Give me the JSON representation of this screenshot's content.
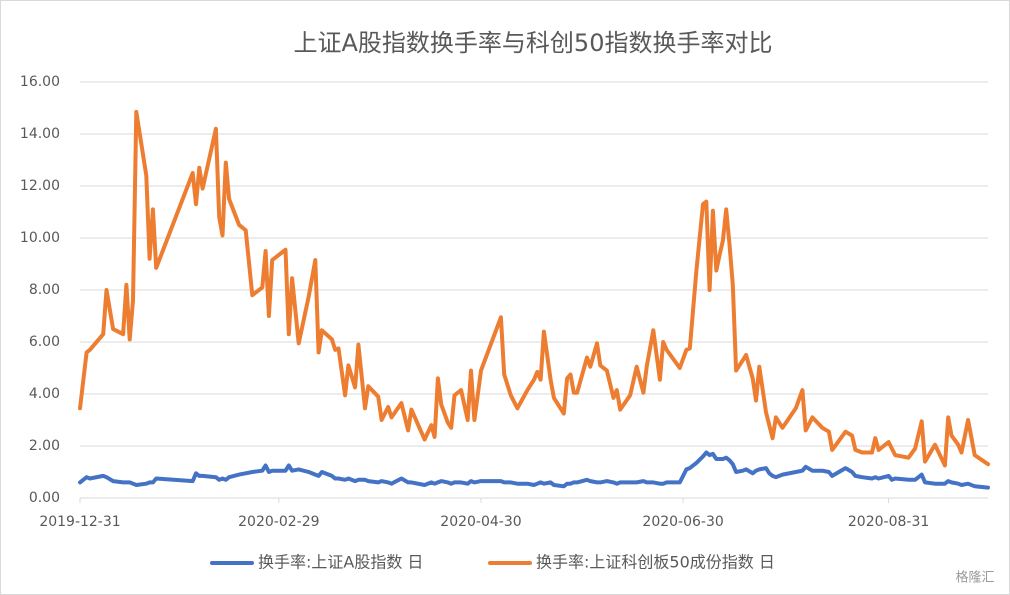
{
  "chart_data": {
    "type": "line",
    "title": "上证A股指数换手率与科创50指数换手率对比",
    "x": [
      "2019-12-31",
      "2020-01-02",
      "2020-01-03",
      "2020-01-07",
      "2020-01-08",
      "2020-01-10",
      "2020-01-13",
      "2020-01-14",
      "2020-01-15",
      "2020-01-16",
      "2020-01-17",
      "2020-01-20",
      "2020-01-21",
      "2020-01-22",
      "2020-01-23",
      "2020-02-03",
      "2020-02-04",
      "2020-02-05",
      "2020-02-06",
      "2020-02-10",
      "2020-02-11",
      "2020-02-12",
      "2020-02-13",
      "2020-02-14",
      "2020-02-17",
      "2020-02-19",
      "2020-02-21",
      "2020-02-24",
      "2020-02-25",
      "2020-02-26",
      "2020-02-27",
      "2020-03-02",
      "2020-03-03",
      "2020-03-04",
      "2020-03-06",
      "2020-03-09",
      "2020-03-11",
      "2020-03-12",
      "2020-03-13",
      "2020-03-16",
      "2020-03-17",
      "2020-03-18",
      "2020-03-20",
      "2020-03-21",
      "2020-03-23",
      "2020-03-24",
      "2020-03-26",
      "2020-03-27",
      "2020-03-30",
      "2020-03-31",
      "2020-04-02",
      "2020-04-03",
      "2020-04-06",
      "2020-04-08",
      "2020-04-09",
      "2020-04-13",
      "2020-04-15",
      "2020-04-16",
      "2020-04-17",
      "2020-04-18",
      "2020-04-20",
      "2020-04-21",
      "2020-04-22",
      "2020-04-24",
      "2020-04-26",
      "2020-04-27",
      "2020-04-28",
      "2020-04-30",
      "2020-05-06",
      "2020-05-07",
      "2020-05-09",
      "2020-05-11",
      "2020-05-14",
      "2020-05-16",
      "2020-05-17",
      "2020-05-18",
      "2020-05-19",
      "2020-05-21",
      "2020-05-22",
      "2020-05-25",
      "2020-05-26",
      "2020-05-27",
      "2020-05-28",
      "2020-05-29",
      "2020-06-01",
      "2020-06-02",
      "2020-06-04",
      "2020-06-05",
      "2020-06-07",
      "2020-06-09",
      "2020-06-10",
      "2020-06-11",
      "2020-06-14",
      "2020-06-16",
      "2020-06-18",
      "2020-06-19",
      "2020-06-21",
      "2020-06-23",
      "2020-06-24",
      "2020-06-25",
      "2020-06-29",
      "2020-07-01",
      "2020-07-02",
      "2020-07-04",
      "2020-07-06",
      "2020-07-07",
      "2020-07-08",
      "2020-07-09",
      "2020-07-10",
      "2020-07-11",
      "2020-07-12",
      "2020-07-13",
      "2020-07-14",
      "2020-07-15",
      "2020-07-16",
      "2020-07-18",
      "2020-07-19",
      "2020-07-21",
      "2020-07-22",
      "2020-07-23",
      "2020-07-25",
      "2020-07-26",
      "2020-07-27",
      "2020-07-28",
      "2020-07-30",
      "2020-08-03",
      "2020-08-05",
      "2020-08-06",
      "2020-08-08",
      "2020-08-11",
      "2020-08-13",
      "2020-08-14",
      "2020-08-18",
      "2020-08-20",
      "2020-08-21",
      "2020-08-23",
      "2020-08-26",
      "2020-08-27",
      "2020-08-28",
      "2020-08-31",
      "2020-09-01",
      "2020-09-02",
      "2020-09-06",
      "2020-09-08",
      "2020-09-10",
      "2020-09-11",
      "2020-09-14",
      "2020-09-17",
      "2020-09-18",
      "2020-09-19",
      "2020-09-21",
      "2020-09-22",
      "2020-09-24",
      "2020-09-26",
      "2020-09-30"
    ],
    "series": [
      {
        "name": "换手率:上证A股指数 日",
        "color": "#4472c4",
        "values": [
          0.6,
          0.8,
          0.75,
          0.85,
          0.8,
          0.65,
          0.6,
          0.6,
          0.6,
          0.55,
          0.5,
          0.55,
          0.6,
          0.6,
          0.75,
          0.65,
          0.95,
          0.85,
          0.85,
          0.8,
          0.7,
          0.75,
          0.7,
          0.8,
          0.9,
          0.95,
          1.0,
          1.05,
          1.25,
          1.0,
          1.05,
          1.05,
          1.25,
          1.05,
          1.1,
          1.0,
          0.9,
          0.85,
          1.0,
          0.85,
          0.75,
          0.75,
          0.7,
          0.75,
          0.65,
          0.7,
          0.7,
          0.65,
          0.6,
          0.65,
          0.6,
          0.55,
          0.75,
          0.6,
          0.6,
          0.5,
          0.6,
          0.55,
          0.6,
          0.65,
          0.6,
          0.55,
          0.6,
          0.6,
          0.55,
          0.65,
          0.6,
          0.65,
          0.65,
          0.6,
          0.6,
          0.55,
          0.55,
          0.5,
          0.55,
          0.6,
          0.55,
          0.6,
          0.5,
          0.45,
          0.55,
          0.55,
          0.6,
          0.6,
          0.7,
          0.65,
          0.6,
          0.6,
          0.65,
          0.6,
          0.55,
          0.6,
          0.6,
          0.6,
          0.65,
          0.6,
          0.6,
          0.55,
          0.55,
          0.6,
          0.6,
          1.1,
          1.15,
          1.35,
          1.6,
          1.75,
          1.65,
          1.7,
          1.5,
          1.5,
          1.5,
          1.55,
          1.45,
          1.3,
          1.0,
          1.05,
          1.1,
          0.95,
          1.05,
          1.1,
          1.15,
          0.95,
          0.85,
          0.8,
          0.9,
          1.0,
          1.05,
          1.2,
          1.05,
          1.05,
          1.0,
          0.85,
          1.15,
          1.0,
          0.85,
          0.8,
          0.75,
          0.8,
          0.75,
          0.85,
          0.7,
          0.75,
          0.7,
          0.7,
          0.9,
          0.6,
          0.55,
          0.55,
          0.65,
          0.6,
          0.55,
          0.5,
          0.55,
          0.45,
          0.4
        ]
      },
      {
        "name": "换手率:上证科创板50成份指数 日",
        "color": "#ed7d31",
        "values": [
          3.45,
          5.6,
          5.7,
          6.3,
          8.0,
          6.5,
          6.3,
          8.2,
          6.1,
          7.6,
          14.85,
          12.4,
          9.2,
          11.1,
          8.85,
          12.5,
          11.3,
          12.7,
          11.9,
          14.2,
          10.8,
          10.1,
          12.9,
          11.5,
          10.5,
          10.3,
          7.8,
          8.1,
          9.5,
          7.0,
          9.15,
          9.55,
          6.3,
          8.45,
          5.95,
          7.75,
          9.15,
          5.6,
          6.45,
          6.1,
          5.7,
          5.75,
          3.95,
          5.1,
          4.25,
          5.9,
          3.45,
          4.3,
          3.9,
          3.0,
          3.5,
          3.1,
          3.65,
          2.6,
          3.4,
          2.25,
          2.8,
          2.35,
          4.6,
          3.6,
          2.9,
          2.7,
          3.95,
          4.15,
          3.0,
          4.9,
          3.0,
          4.9,
          6.95,
          4.75,
          3.95,
          3.45,
          4.15,
          4.55,
          4.85,
          4.55,
          6.4,
          4.55,
          3.85,
          3.25,
          4.6,
          4.75,
          4.05,
          4.05,
          5.4,
          5.05,
          5.95,
          5.1,
          4.9,
          3.85,
          4.15,
          3.4,
          3.95,
          5.05,
          4.05,
          5.05,
          6.45,
          4.55,
          6.0,
          5.7,
          5.0,
          5.7,
          5.75,
          8.75,
          11.3,
          11.4,
          8.0,
          11.05,
          8.75,
          9.35,
          9.9,
          11.1,
          9.75,
          8.2,
          4.9,
          5.3,
          5.5,
          4.6,
          3.75,
          5.05,
          3.3,
          2.8,
          2.3,
          3.1,
          2.7,
          3.45,
          4.15,
          2.6,
          3.1,
          2.7,
          2.55,
          1.85,
          2.55,
          2.4,
          1.85,
          1.75,
          1.75,
          2.3,
          1.85,
          2.15,
          1.9,
          1.65,
          1.55,
          1.9,
          2.95,
          1.4,
          2.05,
          1.25,
          3.1,
          2.4,
          2.05,
          1.75,
          3.0,
          1.65,
          1.3
        ]
      }
    ],
    "xlim": [
      "2019-12-31",
      "2020-09-30"
    ],
    "xticks": [
      "2019-12-31",
      "2020-02-29",
      "2020-04-30",
      "2020-06-30",
      "2020-08-31"
    ],
    "ylim": [
      0,
      16
    ],
    "yticks": [
      {
        "value": 0,
        "label": "0.00"
      },
      {
        "value": 2,
        "label": "2.00"
      },
      {
        "value": 4,
        "label": "4.00"
      },
      {
        "value": 6,
        "label": "6.00"
      },
      {
        "value": 8,
        "label": "8.00"
      },
      {
        "value": 10,
        "label": "10.00"
      },
      {
        "value": 12,
        "label": "12.00"
      },
      {
        "value": 14,
        "label": "14.00"
      },
      {
        "value": 16,
        "label": "16.00"
      }
    ],
    "grid": true,
    "legend": "bottom",
    "watermark": "格隆汇"
  }
}
